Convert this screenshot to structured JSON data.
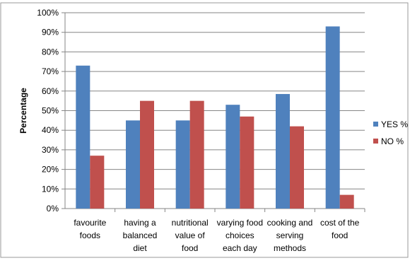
{
  "chart_data": {
    "type": "bar",
    "categories": [
      [
        "favourite",
        "foods"
      ],
      [
        "having a",
        "balanced",
        "diet"
      ],
      [
        "nutritional",
        "value of",
        "food"
      ],
      [
        "varying food",
        "choices",
        "each day"
      ],
      [
        "cooking and",
        "serving",
        "methods"
      ],
      [
        "cost of the",
        "food"
      ]
    ],
    "series": [
      {
        "name": "YES %",
        "color": "#4F81BD",
        "values": [
          73,
          45,
          45,
          53,
          58.5,
          93
        ]
      },
      {
        "name": "NO %",
        "color": "#C0504D",
        "values": [
          27,
          55,
          55,
          47,
          42,
          7
        ]
      }
    ],
    "ylabel": "Percentage",
    "ylim": [
      0,
      100
    ],
    "yticks": [
      "0%",
      "10%",
      "20%",
      "30%",
      "40%",
      "50%",
      "60%",
      "70%",
      "80%",
      "90%",
      "100%"
    ],
    "grid": true,
    "legend": "right"
  }
}
